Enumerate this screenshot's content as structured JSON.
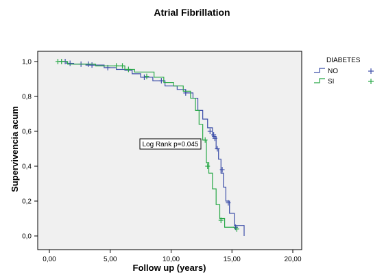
{
  "chart_data": {
    "type": "line",
    "chart_subtype": "kaplan-meier survival curve",
    "title": "Atrial Fibrillation",
    "xlabel": "Follow up (years)",
    "ylabel": "Supervivencia acum",
    "xlim": [
      0,
      20
    ],
    "ylim": [
      0,
      1
    ],
    "x_ticks": [
      0,
      5,
      10,
      15,
      20
    ],
    "x_tick_labels": [
      "0,00",
      "5,00",
      "10,00",
      "15,00",
      "20,00"
    ],
    "y_ticks": [
      0,
      0.2,
      0.4,
      0.6,
      0.8,
      1.0
    ],
    "y_tick_labels": [
      "0,0",
      "0,2",
      "0,4",
      "0,6",
      "0,8",
      "1,0"
    ],
    "grid": false,
    "plot_background": "#f0f0f0",
    "legend": {
      "title": "DIABETES",
      "placement": "right",
      "entries": [
        {
          "label": "NO",
          "color": "#3b4da8"
        },
        {
          "label": "SI",
          "color": "#27a846"
        }
      ]
    },
    "annotation": "Log Rank p=0.045",
    "series": [
      {
        "name": "NO",
        "color": "#3b4da8",
        "steps": [
          [
            0.8,
            1.0
          ],
          [
            1.4,
            0.99
          ],
          [
            2.0,
            0.985
          ],
          [
            3.0,
            0.98
          ],
          [
            4.5,
            0.965
          ],
          [
            5.5,
            0.955
          ],
          [
            6.2,
            0.95
          ],
          [
            6.8,
            0.93
          ],
          [
            7.5,
            0.91
          ],
          [
            8.5,
            0.89
          ],
          [
            9.5,
            0.86
          ],
          [
            10.5,
            0.84
          ],
          [
            11.2,
            0.82
          ],
          [
            11.8,
            0.79
          ],
          [
            12.2,
            0.72
          ],
          [
            12.6,
            0.67
          ],
          [
            13.0,
            0.62
          ],
          [
            13.4,
            0.57
          ],
          [
            13.7,
            0.5
          ],
          [
            13.9,
            0.44
          ],
          [
            14.1,
            0.36
          ],
          [
            14.3,
            0.28
          ],
          [
            14.5,
            0.2
          ],
          [
            14.8,
            0.13
          ],
          [
            15.2,
            0.06
          ],
          [
            16.0,
            0.04
          ]
        ],
        "end_x": 16.0,
        "end_drop_to": 0.0,
        "censored": [
          [
            1.3,
            1.0
          ],
          [
            1.7,
            0.99
          ],
          [
            2.6,
            0.985
          ],
          [
            3.2,
            0.985
          ],
          [
            3.5,
            0.98
          ],
          [
            4.8,
            0.965
          ],
          [
            7.8,
            0.91
          ],
          [
            9.2,
            0.89
          ],
          [
            11.2,
            0.82
          ],
          [
            13.2,
            0.6
          ],
          [
            13.5,
            0.58
          ],
          [
            13.6,
            0.56
          ],
          [
            13.8,
            0.5
          ],
          [
            14.2,
            0.38
          ],
          [
            14.7,
            0.19
          ],
          [
            15.3,
            0.05
          ]
        ]
      },
      {
        "name": "SI",
        "color": "#27a846",
        "steps": [
          [
            0.7,
            1.0
          ],
          [
            1.5,
            0.985
          ],
          [
            3.8,
            0.975
          ],
          [
            6.2,
            0.955
          ],
          [
            7.0,
            0.94
          ],
          [
            8.6,
            0.91
          ],
          [
            9.4,
            0.88
          ],
          [
            10.2,
            0.86
          ],
          [
            11.0,
            0.83
          ],
          [
            11.6,
            0.79
          ],
          [
            12.0,
            0.72
          ],
          [
            12.3,
            0.64
          ],
          [
            12.6,
            0.55
          ],
          [
            12.9,
            0.42
          ],
          [
            13.1,
            0.36
          ],
          [
            13.4,
            0.27
          ],
          [
            13.7,
            0.18
          ],
          [
            14.0,
            0.1
          ],
          [
            14.4,
            0.05
          ],
          [
            15.2,
            0.04
          ]
        ],
        "end_x": 15.2,
        "end_drop_to": 0.04,
        "censored": [
          [
            0.7,
            1.0
          ],
          [
            1.0,
            1.0
          ],
          [
            5.5,
            0.975
          ],
          [
            6.0,
            0.975
          ],
          [
            6.5,
            0.955
          ],
          [
            8.0,
            0.915
          ],
          [
            12.8,
            0.55
          ],
          [
            13.0,
            0.4
          ],
          [
            14.1,
            0.09
          ],
          [
            15.4,
            0.04
          ]
        ]
      }
    ]
  }
}
